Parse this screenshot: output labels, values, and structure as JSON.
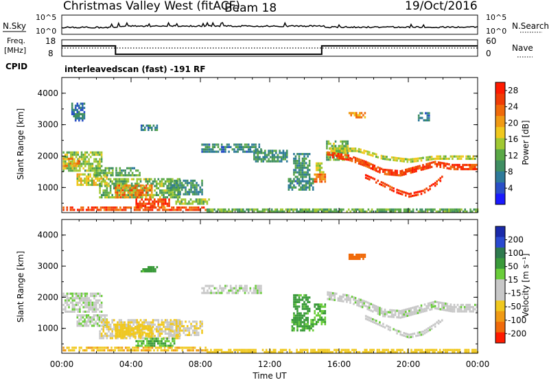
{
  "header": {
    "title": "Christmas Valley West (fitACF)",
    "beam": "Beam 18",
    "date": "19/Oct/2016"
  },
  "top_panels": {
    "nsky_label": "N.Sky",
    "nsky_ticks": [
      "10^5",
      "10^0"
    ],
    "nsearch_label": "N.Search",
    "freq_label_1": "Freq.",
    "freq_label_2": "[MHz]",
    "freq_ticks": [
      "18",
      "8"
    ],
    "nave_ticks": [
      "60",
      "0"
    ],
    "nave_label": "Nave",
    "cpid_label": "CPID",
    "cpid_value": "interleavedscan (fast) -191 RF"
  },
  "colors": {
    "power_scale": [
      "#1a1aff",
      "#2a4fc8",
      "#2e7a9a",
      "#3f8e62",
      "#5aa846",
      "#a0c832",
      "#f0c81e",
      "#f09a14",
      "#f06a0a",
      "#f03c06",
      "#ff1a00"
    ],
    "velocity_scale": [
      "#1a2aaa",
      "#2a4ad0",
      "#2e7a4e",
      "#3a9a3a",
      "#6acd3a",
      "#c8c8c8",
      "#c8c8c8",
      "#f0c81e",
      "#f09a14",
      "#f06a0a",
      "#ff1a00"
    ]
  },
  "chart_data": [
    {
      "type": "heatmap",
      "name": "power",
      "xlabel": "",
      "ylabel": "Slant Range [km]",
      "xlim": [
        "00:00",
        "00:00"
      ],
      "ylim": [
        200,
        4500
      ],
      "yticks": [
        1000,
        2000,
        3000,
        4000
      ],
      "colorbar_label": "Power [dB]",
      "colorbar_ticks": [
        "4",
        "8",
        "12",
        "16",
        "20",
        "24",
        "28"
      ],
      "colorbar_range": [
        0,
        30
      ],
      "regions": [
        {
          "t0": 0.0,
          "t1": 2.3,
          "r0": 1500,
          "r1": 2150,
          "v": 14
        },
        {
          "t0": 0.0,
          "t1": 1.0,
          "r0": 1650,
          "r1": 1950,
          "v": 22
        },
        {
          "t0": 0.8,
          "t1": 2.6,
          "r0": 1050,
          "r1": 1450,
          "v": 17
        },
        {
          "t0": 1.8,
          "t1": 4.5,
          "r0": 1350,
          "r1": 1650,
          "v": 11
        },
        {
          "t0": 2.1,
          "t1": 6.8,
          "r0": 650,
          "r1": 1300,
          "v": 13
        },
        {
          "t0": 3.0,
          "t1": 5.2,
          "r0": 650,
          "r1": 1100,
          "v": 23
        },
        {
          "t0": 4.2,
          "t1": 6.2,
          "r0": 380,
          "r1": 650,
          "v": 27
        },
        {
          "t0": 6.2,
          "t1": 8.1,
          "r0": 750,
          "r1": 1250,
          "v": 9
        },
        {
          "t0": 6.5,
          "t1": 8.5,
          "r0": 450,
          "r1": 650,
          "v": 14
        },
        {
          "t0": 0.0,
          "t1": 8.3,
          "r0": 250,
          "r1": 400,
          "v": 26
        },
        {
          "t0": 8.3,
          "t1": 24.0,
          "r0": 200,
          "r1": 330,
          "v": 12
        },
        {
          "t0": 8.0,
          "t1": 11.5,
          "r0": 2100,
          "r1": 2400,
          "v": 8
        },
        {
          "t0": 11.0,
          "t1": 13.0,
          "r0": 1800,
          "r1": 2200,
          "v": 9
        },
        {
          "t0": 13.0,
          "t1": 14.5,
          "r0": 900,
          "r1": 1300,
          "v": 8
        },
        {
          "t0": 13.3,
          "t1": 14.3,
          "r0": 1300,
          "r1": 2100,
          "v": 9
        },
        {
          "t0": 14.5,
          "t1": 15.2,
          "r0": 1150,
          "r1": 1450,
          "v": 24
        },
        {
          "t0": 14.6,
          "t1": 15.1,
          "r0": 1450,
          "r1": 1800,
          "v": 17
        },
        {
          "t0": 15.2,
          "t1": 16.5,
          "r0": 1850,
          "r1": 2500,
          "v": 13
        },
        {
          "t0": 16.5,
          "t1": 17.5,
          "r0": 3200,
          "r1": 3400,
          "v": 22
        },
        {
          "t0": 4.5,
          "t1": 5.5,
          "r0": 2800,
          "r1": 3000,
          "v": 8
        },
        {
          "t0": 0.5,
          "t1": 1.3,
          "r0": 3100,
          "r1": 3700,
          "v": 6
        },
        {
          "t0": 20.5,
          "t1": 21.2,
          "r0": 3100,
          "r1": 3400,
          "v": 6
        }
      ],
      "bands": [
        {
          "t": [
            15.3,
            16.5,
            17.5,
            18.5,
            19.5,
            20.5,
            21.5,
            22.5,
            23.5,
            24.0
          ],
          "r": [
            2050,
            1950,
            1750,
            1500,
            1450,
            1600,
            1750,
            1650,
            1650,
            1650
          ],
          "w": 200,
          "v": 27
        },
        {
          "t": [
            17.5,
            18.5,
            19.2,
            20.0,
            20.8,
            21.5,
            22.0
          ],
          "r": [
            1350,
            1100,
            900,
            750,
            850,
            1100,
            1350
          ],
          "w": 170,
          "v": 28
        },
        {
          "t": [
            15.4,
            17.0,
            18.5,
            20.0,
            21.5,
            23.0,
            24.0
          ],
          "r": [
            2200,
            2200,
            1950,
            1850,
            1950,
            1950,
            1950
          ],
          "w": 150,
          "v": 16
        }
      ]
    },
    {
      "type": "heatmap",
      "name": "velocity",
      "xlabel": "Time UT",
      "ylabel": "Slant Range [km]",
      "xticks": [
        "00:00",
        "04:00",
        "08:00",
        "12:00",
        "16:00",
        "20:00",
        "00:00"
      ],
      "ylim": [
        200,
        4500
      ],
      "yticks": [
        1000,
        2000,
        3000,
        4000
      ],
      "colorbar_label": "Velocity [m s⁻¹]",
      "colorbar_ticks": [
        "200",
        "100",
        "50",
        "15",
        "-15",
        "-50",
        "-100",
        "-200"
      ],
      "regions": [
        {
          "t0": 0.0,
          "t1": 2.3,
          "r0": 1500,
          "r1": 2150,
          "v": 0
        },
        {
          "t0": 0.8,
          "t1": 2.6,
          "r0": 1050,
          "r1": 1450,
          "v": 0
        },
        {
          "t0": 2.1,
          "t1": 6.8,
          "r0": 650,
          "r1": 1300,
          "v": -30
        },
        {
          "t0": 3.0,
          "t1": 5.2,
          "r0": 700,
          "r1": 1100,
          "v": -60
        },
        {
          "t0": 4.2,
          "t1": 6.5,
          "r0": 400,
          "r1": 700,
          "v": 30
        },
        {
          "t0": 6.2,
          "t1": 8.1,
          "r0": 750,
          "r1": 1250,
          "v": -30
        },
        {
          "t0": 0.0,
          "t1": 8.3,
          "r0": 250,
          "r1": 420,
          "v": -70
        },
        {
          "t0": 8.3,
          "t1": 24.0,
          "r0": 200,
          "r1": 340,
          "v": -60
        },
        {
          "t0": 8.0,
          "t1": 11.5,
          "r0": 2100,
          "r1": 2400,
          "v": 0
        },
        {
          "t0": 13.2,
          "t1": 14.5,
          "r0": 900,
          "r1": 1300,
          "v": 40
        },
        {
          "t0": 13.3,
          "t1": 14.3,
          "r0": 1300,
          "r1": 2100,
          "v": 45
        },
        {
          "t0": 14.5,
          "t1": 15.2,
          "r0": 1100,
          "r1": 1800,
          "v": 35
        },
        {
          "t0": 16.5,
          "t1": 17.5,
          "r0": 3200,
          "r1": 3400,
          "v": -150
        },
        {
          "t0": 4.5,
          "t1": 5.5,
          "r0": 2800,
          "r1": 3000,
          "v": 40
        }
      ],
      "bands": [
        {
          "t": [
            15.3,
            16.5,
            17.5,
            18.5,
            19.5,
            20.5,
            21.5,
            22.5,
            23.5,
            24.0
          ],
          "r": [
            2050,
            1950,
            1750,
            1500,
            1450,
            1600,
            1750,
            1650,
            1650,
            1650
          ],
          "w": 280,
          "v": 0
        },
        {
          "t": [
            17.5,
            18.5,
            19.2,
            20.0,
            20.8,
            21.5,
            22.0
          ],
          "r": [
            1350,
            1100,
            900,
            750,
            850,
            1100,
            1350
          ],
          "w": 170,
          "v": 0
        }
      ]
    },
    {
      "type": "line",
      "name": "frequency",
      "ylim": [
        8,
        18
      ],
      "x": [
        0.0,
        3.1,
        3.1,
        15.0,
        15.0,
        24.0
      ],
      "y": [
        14.3,
        14.3,
        9.2,
        9.2,
        14.3,
        14.3
      ]
    }
  ]
}
